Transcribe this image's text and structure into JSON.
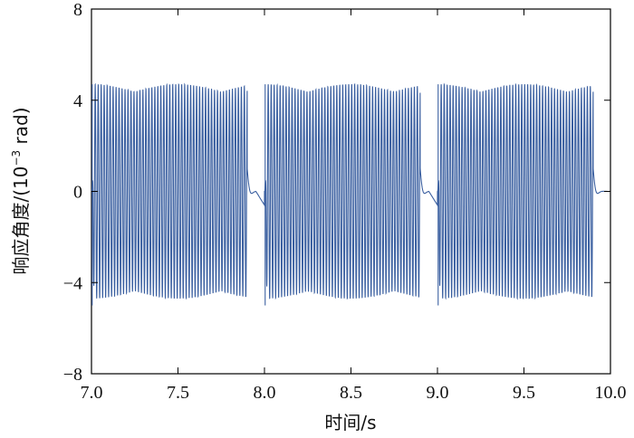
{
  "chart_data": {
    "type": "line",
    "title": "",
    "xlabel": "时间/s",
    "ylabel": {
      "prefix": "响应角度/(10",
      "exponent": "−3",
      "suffix": " rad)"
    },
    "xlim": [
      7.0,
      10.0
    ],
    "ylim": [
      -8,
      8
    ],
    "x_ticks": [
      7.0,
      7.5,
      8.0,
      8.5,
      9.0,
      9.5,
      10.0
    ],
    "x_tick_labels": [
      "7.0",
      "7.5",
      "8.0",
      "8.5",
      "9.0",
      "9.5",
      "10.0"
    ],
    "y_ticks": [
      8,
      4,
      0,
      -4,
      -8
    ],
    "y_tick_labels": [
      "8",
      "4",
      "0",
      "−4",
      "−8"
    ],
    "grid": false,
    "legend": "none",
    "series": [
      {
        "color": "#3a5fa0",
        "signal": {
          "description_free": true,
          "active_intervals": [
            [
              7.0,
              7.9
            ],
            [
              8.0,
              8.9
            ],
            [
              9.0,
              9.9
            ]
          ],
          "amplitude": 4.7,
          "frequency_hz": 58,
          "beat_frequency_hz": 2.0,
          "transient_peak": -5.0,
          "decay_time_constant_s": 0.012
        }
      }
    ]
  }
}
